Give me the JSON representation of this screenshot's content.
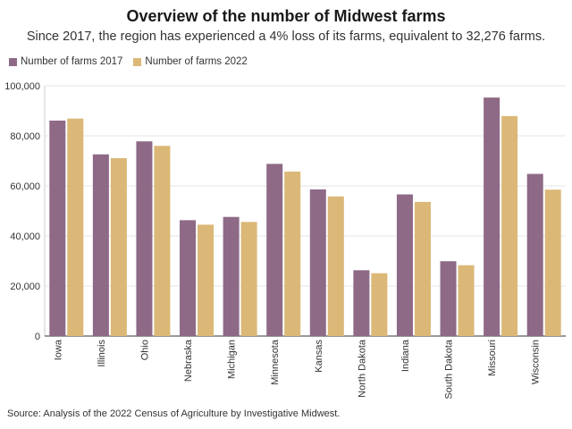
{
  "title": "Overview of the number of Midwest farms",
  "subtitle": "Since 2017, the region has experienced a 4% loss of its farms, equivalent to 32,276 farms.",
  "source": "Source: Analysis of the 2022 Census of Agriculture by Investigative Midwest.",
  "colors": {
    "series2017": "#8e6a87",
    "series2022": "#dbb877",
    "grid": "#e6e6e6",
    "axis": "#333333"
  },
  "chart_data": {
    "type": "bar",
    "categories": [
      "Iowa",
      "Illinois",
      "Ohio",
      "Nebraska",
      "Michigan",
      "Minnesota",
      "Kansas",
      "North Dakota",
      "Indiana",
      "South Dakota",
      "Missouri",
      "Wisconsin"
    ],
    "series": [
      {
        "name": "Number of farms 2017",
        "values": [
          86100,
          72600,
          77800,
          46300,
          47600,
          68800,
          58600,
          26300,
          56600,
          29900,
          95300,
          64800
        ]
      },
      {
        "name": "Number of farms 2022",
        "values": [
          86900,
          71100,
          76000,
          44500,
          45600,
          65700,
          55800,
          25100,
          53600,
          28300,
          87900,
          58500
        ]
      }
    ],
    "yticks": [
      "0",
      "20,000",
      "40,000",
      "60,000",
      "80,000",
      "100,000"
    ],
    "ylim": [
      0,
      100000
    ],
    "grid": true,
    "legend": "top-left"
  }
}
